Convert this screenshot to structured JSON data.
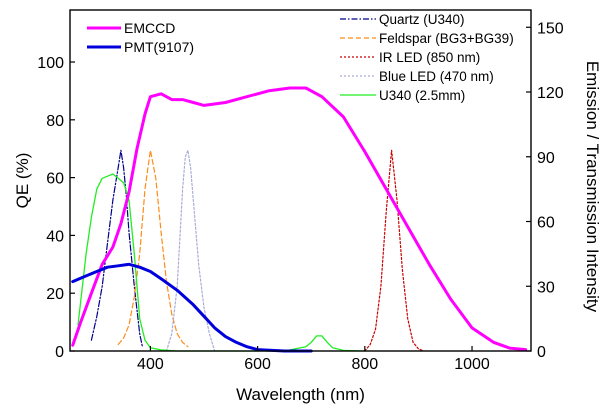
{
  "chart_data": {
    "type": "line",
    "xlabel": "Wavelength (nm)",
    "ylabel_left": "QE (%)",
    "ylabel_right": "Emission / Transmission Intensity",
    "x_range": [
      250,
      1110
    ],
    "y_left_range": [
      0,
      118
    ],
    "y_right_range": [
      0,
      158
    ],
    "x_ticks": [
      400,
      600,
      800,
      1000
    ],
    "y_left_ticks": [
      0,
      20,
      40,
      60,
      80,
      100
    ],
    "y_right_ticks": [
      0,
      30,
      60,
      90,
      120,
      150
    ],
    "grid": false,
    "legends": {
      "left": {
        "placement": "top-left",
        "entries": [
          "EMCCD",
          "PMT(9107)"
        ]
      },
      "right": {
        "placement": "top-right",
        "entries": [
          "Quartz (U340)",
          "Feldspar (BG3+BG39)",
          "IR LED (850 nm)",
          "Blue LED (470 nm)",
          "U340 (2.5mm)"
        ]
      }
    },
    "series": [
      {
        "name": "EMCCD",
        "axis": "left",
        "color": "#ff00ff",
        "style": "solid",
        "width": 3,
        "x": [
          255,
          270,
          290,
          310,
          330,
          345,
          360,
          375,
          390,
          400,
          420,
          440,
          460,
          480,
          500,
          540,
          580,
          620,
          660,
          690,
          720,
          760,
          800,
          840,
          880,
          920,
          960,
          1000,
          1040,
          1070,
          1100
        ],
        "y": [
          2,
          10,
          20,
          30,
          36,
          44,
          55,
          70,
          82,
          88,
          89,
          87,
          87,
          86,
          85,
          86,
          88,
          90,
          91,
          91,
          88,
          81,
          69,
          56,
          43,
          30,
          18,
          8,
          3,
          1,
          0.5
        ]
      },
      {
        "name": "PMT(9107)",
        "axis": "left",
        "color": "#0000dd",
        "style": "solid",
        "width": 3,
        "x": [
          255,
          280,
          300,
          320,
          340,
          360,
          380,
          400,
          420,
          450,
          480,
          500,
          520,
          540,
          560,
          580,
          600,
          650,
          700
        ],
        "y": [
          24,
          26,
          27.5,
          29,
          29.5,
          30,
          29,
          27.5,
          25,
          21,
          16,
          12,
          8,
          5,
          3,
          1.5,
          0.5,
          0,
          0
        ]
      },
      {
        "name": "Quartz (U340)",
        "axis": "right",
        "color": "#00008b",
        "style": "dashdot",
        "width": 1.2,
        "x": [
          290,
          300,
          310,
          320,
          330,
          340,
          345,
          350,
          355,
          360,
          370,
          380,
          385
        ],
        "y": [
          5,
          16,
          30,
          50,
          70,
          85,
          93,
          85,
          72,
          55,
          30,
          8,
          2
        ]
      },
      {
        "name": "Feldspar (BG3+BG39)",
        "axis": "right",
        "color": "#ff8c1a",
        "style": "dashed",
        "width": 1.2,
        "x": [
          340,
          350,
          360,
          370,
          380,
          390,
          400,
          410,
          420,
          430,
          440,
          450,
          460,
          470
        ],
        "y": [
          3,
          6,
          12,
          25,
          45,
          75,
          93,
          80,
          55,
          32,
          17,
          8,
          4,
          2
        ]
      },
      {
        "name": "IR LED (850 nm)",
        "axis": "right",
        "color": "#cc0000",
        "style": "dotted",
        "width": 1.2,
        "x": [
          800,
          810,
          820,
          830,
          840,
          850,
          860,
          870,
          880,
          890,
          900,
          910
        ],
        "y": [
          0,
          3,
          10,
          30,
          65,
          93,
          70,
          38,
          15,
          4,
          1,
          0
        ]
      },
      {
        "name": "Blue LED (470 nm)",
        "axis": "right",
        "color": "#a9acd6",
        "style": "dotted",
        "width": 1.2,
        "x": [
          430,
          440,
          450,
          460,
          465,
          470,
          475,
          480,
          490,
          500,
          510,
          520
        ],
        "y": [
          0,
          8,
          30,
          75,
          90,
          93,
          85,
          70,
          40,
          20,
          8,
          0
        ]
      },
      {
        "name": "U340 (2.5mm)",
        "axis": "right",
        "color": "#22ee22",
        "style": "solid",
        "width": 1.3,
        "x": [
          265,
          280,
          290,
          300,
          310,
          320,
          330,
          340,
          350,
          360,
          370,
          375,
          380,
          390,
          400,
          420,
          450,
          500,
          550,
          600,
          650,
          690,
          700,
          710,
          720,
          730,
          740,
          760,
          800
        ],
        "y": [
          12,
          45,
          62,
          75,
          80,
          81,
          82,
          80,
          78,
          70,
          45,
          30,
          15,
          5,
          1.5,
          0.5,
          0,
          0,
          0,
          0,
          0,
          2,
          4,
          7,
          7,
          4,
          1.5,
          0.3,
          0
        ]
      }
    ]
  }
}
